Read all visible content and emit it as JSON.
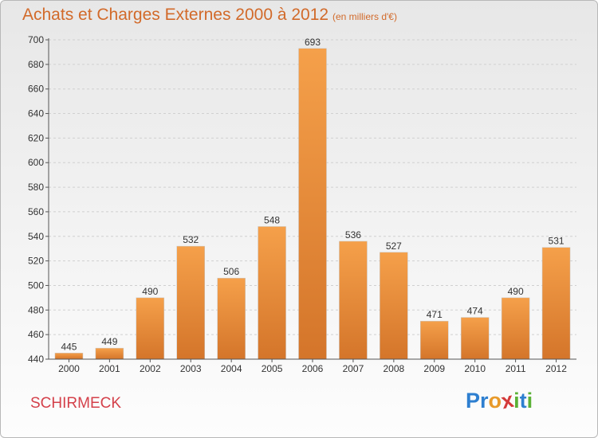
{
  "header": {
    "title": "Achats et Charges Externes 2000 à 2012",
    "subtitle": "(en milliers d'€)"
  },
  "footer": {
    "place": "SCHIRMECK",
    "logo": [
      {
        "char": "P",
        "color": "#2e7fd0"
      },
      {
        "char": "r",
        "color": "#2e7fd0"
      },
      {
        "char": "o",
        "color": "#e89a2a"
      },
      {
        "char": "x",
        "color": "#d43a3a"
      },
      {
        "char": "i",
        "color": "#5bb136"
      },
      {
        "char": "t",
        "color": "#2e7fd0"
      },
      {
        "char": "i",
        "color": "#5bb136"
      }
    ]
  },
  "chart_data": {
    "type": "bar",
    "title": "Achats et Charges Externes 2000 à 2012",
    "subtitle": "(en milliers d'€)",
    "xlabel": "",
    "ylabel": "",
    "categories": [
      "2000",
      "2001",
      "2002",
      "2003",
      "2004",
      "2005",
      "2006",
      "2007",
      "2008",
      "2009",
      "2010",
      "2011",
      "2012"
    ],
    "values": [
      445,
      449,
      490,
      532,
      506,
      548,
      693,
      536,
      527,
      471,
      474,
      490,
      531
    ],
    "ylim": [
      440,
      700
    ],
    "yticks": [
      440,
      460,
      480,
      500,
      520,
      540,
      560,
      580,
      600,
      620,
      640,
      660,
      680,
      700
    ],
    "grid": true,
    "bar_color": "#f5a04a",
    "bar_color_dark": "#d4752a"
  }
}
